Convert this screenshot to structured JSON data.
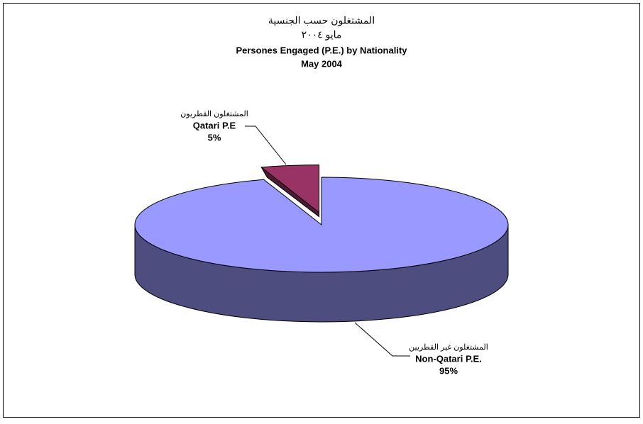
{
  "chart_data": {
    "type": "pie",
    "title": [
      "المشتغلون حسب الجنسية",
      "مايو ٢٠٠٤",
      "Persones Engaged (P.E.) by Nationality",
      "May 2004"
    ],
    "categories": [
      "Non-Qatari P.E.",
      "Qatari P.E"
    ],
    "categories_ar": [
      "المشتغلون غير القطريين",
      "المشتغلون القطريون"
    ],
    "values": [
      95,
      5
    ],
    "value_labels": [
      "95%",
      "5%"
    ],
    "colors": [
      "#9999ff",
      "#993366"
    ],
    "side_colors": [
      "#4d4d80",
      "#4d1a33"
    ],
    "exploded": [
      false,
      true
    ]
  }
}
